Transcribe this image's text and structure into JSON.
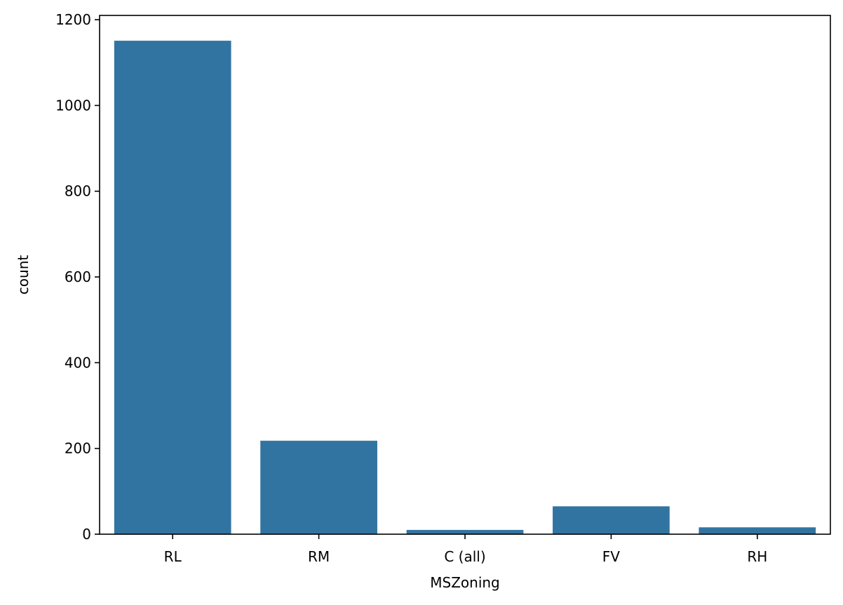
{
  "chart_data": {
    "type": "bar",
    "title": "",
    "xlabel": "MSZoning",
    "ylabel": "count",
    "categories": [
      "RL",
      "RM",
      "C (all)",
      "FV",
      "RH"
    ],
    "values": [
      1151,
      218,
      10,
      65,
      16
    ],
    "ylim": [
      0,
      1210
    ],
    "yticks": [
      0,
      200,
      400,
      600,
      800,
      1000,
      1200
    ],
    "grid": false,
    "legend": "none",
    "bar_color": "#3274a1"
  }
}
